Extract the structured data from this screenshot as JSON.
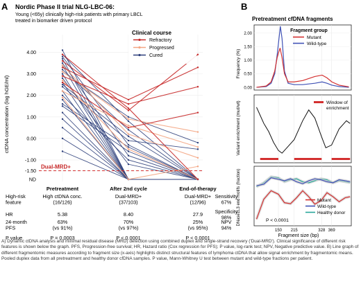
{
  "panel_a": {
    "letter": "A",
    "title": "Nordic Phase II trial NLG-LBC-06:",
    "subtitle_lines": [
      "Young (<65y) clinically high-risk patients with primary LBCL",
      "treated in biomarker driven protocol"
    ],
    "legend_title": "Clinical course",
    "dual_mrd_label": "Dual-MRD+",
    "ylabel": "ctDNA concentration (log hGE/ml)"
  },
  "panel_b": {
    "letter": "B",
    "title": "Pretreatment cfDNA fragments",
    "top_legend_title": "Fragment group",
    "top_ylabel": "Frequency (%)",
    "mid_legend_lines": [
      "Window of",
      "enrichment"
    ],
    "mid_ylabel": "Variant enrichment (mut/wt)",
    "bottom_ylabel": "DNase1L3 end motifs (fraction)",
    "pvalue_text": "P < 0.0001",
    "xlabel": "Fragment size (bp)"
  },
  "stats_table": {
    "header_row_label": "High-risk feature",
    "rows": [
      {
        "label": "High-risk\nfeature",
        "pre": "High ctDNA conc.\n(16/126)",
        "after": "Dual-MRD+\n(37/103)",
        "end": "Dual-MRD+\n(12/96)",
        "right": "Sensitivity\n67%"
      },
      {
        "label": "HR",
        "pre": "5.38",
        "after": "8.40",
        "end": "27.9",
        "right": "Specificity\n98%"
      },
      {
        "label": "24-month\nPFS",
        "pre": "63%\n(vs 91%)",
        "after": "70%\n(vs 97%)",
        "end": "25%\n(vs 95%)",
        "right": "NPV\n94%"
      },
      {
        "label": "P value",
        "pre": "P = 0.0003",
        "after": "P < 0.0001",
        "end": "P < 0.0001",
        "right": ""
      }
    ]
  },
  "caption": "A) Dynamic ctDNA analysis and minimal residual disease (MRD) detection using combined duplex and single-strand recovery ('Dual-MRD'). Clinical significance of different risk features is shown below the graph. PFS, Progression-free survival; HR, Hazard ratio (Cox regression for PFS); P value, log-rank test; NPV, Negative predictive value. B) Line graph of different fragmentomic measures according to fragment size (x-axis) highlights distinct structural features of lymphoma ctDNA that allow signal enrichment by fragmentomic means. Pooled duplex data from all pretreatment and healthy donor cfDNA samples. P value, Mann-Whitney U test between mutant and wild-type fractions per patient.",
  "colors": {
    "refractory": "#c62828",
    "progressed": "#f4a582",
    "cured": "#2c3e7a",
    "mutant": "#d32f2f",
    "wildtype": "#3f51b5",
    "healthy": "#26a69a",
    "dashed": "#d32f2f"
  },
  "chart_data": [
    {
      "type": "line",
      "title": "Nordic Phase II trial NLG-LBC-06:",
      "ylabel": "ctDNA concentration (log hGE/ml)",
      "categories": [
        "Pretreatment",
        "After 2nd cycle",
        "End-of-therapy"
      ],
      "y_ticks": [
        "ND",
        "-1.50",
        "-1.00",
        "0.00",
        "1.00",
        "2.00",
        "3.00",
        "4.00"
      ],
      "ylim": [
        -2.0,
        4.5
      ],
      "dual_mrd_threshold": -1.5,
      "legend": [
        "Refractory",
        "Progressed",
        "Cured"
      ],
      "series": [
        {
          "course": "Refractory",
          "values": [
            3.6,
            1.3,
            3.9
          ]
        },
        {
          "course": "Refractory",
          "values": [
            3.3,
            1.8,
            3.3
          ]
        },
        {
          "course": "Refractory",
          "values": [
            2.9,
            1.6,
            2.4
          ]
        },
        {
          "course": "Refractory",
          "values": [
            2.6,
            0.5,
            1.2
          ]
        },
        {
          "course": "Refractory",
          "values": [
            3.9,
            1.4,
            -1.9
          ]
        },
        {
          "course": "Progressed",
          "values": [
            3.1,
            0.9,
            0.3
          ]
        },
        {
          "course": "Progressed",
          "values": [
            2.2,
            0.6,
            -0.4
          ]
        },
        {
          "course": "Progressed",
          "values": [
            3.4,
            0.2,
            -0.9
          ]
        },
        {
          "course": "Progressed",
          "values": [
            1.9,
            -1.9,
            -1.3
          ]
        },
        {
          "course": "Progressed",
          "values": [
            2.7,
            -0.5,
            -1.9
          ]
        },
        {
          "course": "Cured",
          "values": [
            4.1,
            -1.9,
            -1.9
          ]
        },
        {
          "course": "Cured",
          "values": [
            3.8,
            -0.3,
            -1.9
          ]
        },
        {
          "course": "Cured",
          "values": [
            3.7,
            -1.9,
            -1.9
          ]
        },
        {
          "course": "Cured",
          "values": [
            3.5,
            -0.8,
            -1.9
          ]
        },
        {
          "course": "Cured",
          "values": [
            3.4,
            -1.9,
            -1.9
          ]
        },
        {
          "course": "Cured",
          "values": [
            3.2,
            0.4,
            -1.9
          ]
        },
        {
          "course": "Cured",
          "values": [
            3.0,
            -1.9,
            -1.9
          ]
        },
        {
          "course": "Cured",
          "values": [
            2.8,
            -1.2,
            -1.9
          ]
        },
        {
          "course": "Cured",
          "values": [
            2.6,
            -1.9,
            -1.9
          ]
        },
        {
          "course": "Cured",
          "values": [
            2.4,
            -0.1,
            -0.5
          ]
        },
        {
          "course": "Cured",
          "values": [
            2.2,
            -1.9,
            -1.9
          ]
        },
        {
          "course": "Cured",
          "values": [
            2.0,
            -1.0,
            -1.9
          ]
        },
        {
          "course": "Cured",
          "values": [
            1.8,
            -1.9,
            -1.9
          ]
        },
        {
          "course": "Cured",
          "values": [
            1.5,
            -0.6,
            -1.9
          ]
        },
        {
          "course": "Cured",
          "values": [
            1.2,
            -1.9,
            -1.9
          ]
        },
        {
          "course": "Cured",
          "values": [
            0.9,
            -1.9,
            -1.9
          ]
        },
        {
          "course": "Cured",
          "values": [
            0.5,
            -1.9,
            -1.9
          ]
        },
        {
          "course": "Cured",
          "values": [
            0.0,
            -1.9,
            -1.9
          ]
        },
        {
          "course": "Cured",
          "values": [
            -0.6,
            -1.9,
            -1.9
          ]
        },
        {
          "course": "Cured",
          "values": [
            3.9,
            0.8,
            -1.9
          ]
        },
        {
          "course": "Cured",
          "values": [
            3.1,
            1.0,
            -0.2
          ]
        },
        {
          "course": "Cured",
          "values": [
            2.5,
            0.1,
            -1.9
          ]
        },
        {
          "course": "Cured",
          "values": [
            1.6,
            -0.4,
            -1.9
          ]
        }
      ]
    },
    {
      "type": "line",
      "title": "Pretreatment cfDNA fragments",
      "xlabel": "Fragment size (bp)",
      "x_ticks": [
        150,
        215,
        328,
        369
      ],
      "xlim": [
        50,
        450
      ],
      "panels": [
        {
          "name": "frequency",
          "ylabel": "Frequency (%)",
          "y_ticks": [
            0.0,
            0.5,
            1.0,
            1.5,
            2.0
          ],
          "ylim": [
            -0.1,
            2.3
          ],
          "legend_title": "Fragment group",
          "series": [
            {
              "name": "Mutant",
              "x": [
                60,
                100,
                120,
                135,
                145,
                150,
                157,
                165,
                175,
                190,
                215,
                250,
                300,
                330,
                350,
                370,
                400,
                440
              ],
              "y": [
                0.0,
                0.05,
                0.2,
                0.6,
                1.1,
                1.25,
                1.45,
                1.1,
                0.5,
                0.2,
                0.2,
                0.25,
                0.4,
                0.45,
                0.35,
                0.2,
                0.08,
                0.02
              ]
            },
            {
              "name": "Wild-type",
              "x": [
                60,
                100,
                120,
                135,
                145,
                150,
                158,
                165,
                175,
                190,
                215,
                250,
                300,
                330,
                350,
                370,
                400,
                440
              ],
              "y": [
                0.0,
                0.03,
                0.15,
                0.5,
                1.2,
                1.6,
                2.25,
                1.8,
                0.6,
                0.15,
                0.1,
                0.1,
                0.15,
                0.2,
                0.15,
                0.08,
                0.03,
                0.0
              ]
            }
          ]
        },
        {
          "name": "enrichment",
          "ylabel": "Variant enrichment (mut/wt)",
          "legend": "Window of enrichment",
          "windows": [
            [
              75,
              150
            ],
            [
              215,
              328
            ],
            [
              369,
              445
            ]
          ],
          "series": [
            {
              "name": "Variant enrichment",
              "x": [
                60,
                75,
                90,
                110,
                130,
                150,
                165,
                185,
                215,
                250,
                275,
                300,
                328,
                345,
                369,
                400,
                430,
                445
              ],
              "y": [
                0.9,
                0.75,
                0.6,
                0.45,
                0.25,
                0.1,
                0.05,
                0.15,
                0.3,
                0.65,
                0.85,
                0.7,
                0.35,
                0.15,
                0.2,
                0.5,
                0.65,
                0.6
              ]
            }
          ]
        },
        {
          "name": "end_motifs",
          "ylabel": "DNase1L3 end motifs (fraction)",
          "pvalue": "P < 0.0001",
          "series": [
            {
              "name": "Mutant",
              "x": [
                60,
                90,
                120,
                150,
                175,
                200,
                225,
                250,
                275,
                300,
                325,
                350,
                375,
                400,
                425,
                445
              ],
              "y": [
                0.05,
                0.45,
                0.62,
                0.55,
                0.38,
                0.36,
                0.48,
                0.62,
                0.5,
                0.35,
                0.42,
                0.58,
                0.5,
                0.4,
                0.48,
                0.5
              ]
            },
            {
              "name": "Wild-type",
              "x": [
                60,
                90,
                120,
                150,
                175,
                200,
                225,
                250,
                275,
                300,
                325,
                350,
                375,
                400,
                425,
                445
              ],
              "y": [
                0.72,
                0.75,
                0.88,
                0.85,
                0.82,
                0.86,
                0.8,
                0.76,
                0.82,
                0.86,
                0.84,
                0.8,
                0.78,
                0.84,
                0.82,
                0.8
              ]
            },
            {
              "name": "Healthy donor",
              "x": [
                60,
                90,
                120,
                150,
                175,
                200,
                225,
                250,
                275,
                300,
                325,
                350,
                375,
                400,
                425,
                445
              ],
              "y": [
                0.7,
                0.78,
                0.9,
                0.88,
                0.8,
                0.84,
                0.86,
                0.8,
                0.78,
                0.82,
                0.86,
                0.84,
                0.78,
                0.82,
                0.8,
                0.78
              ]
            }
          ]
        }
      ]
    }
  ]
}
